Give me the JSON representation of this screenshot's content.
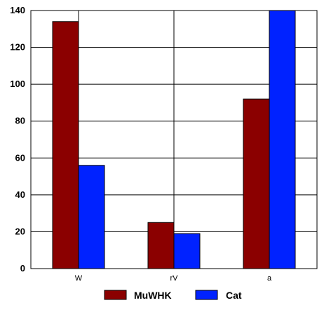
{
  "chart_data": {
    "type": "bar",
    "categories": [
      "W",
      "rV",
      "a"
    ],
    "series": [
      {
        "name": "MuWHK",
        "values": [
          134,
          25,
          92
        ],
        "color": "#8b0000"
      },
      {
        "name": "Cat",
        "values": [
          56,
          19,
          140
        ],
        "color": "#0022ff"
      }
    ],
    "ylim": [
      0,
      140
    ],
    "yticks": [
      0,
      20,
      40,
      60,
      80,
      100,
      120,
      140
    ],
    "grid": true,
    "legend_position": "bottom-center"
  }
}
